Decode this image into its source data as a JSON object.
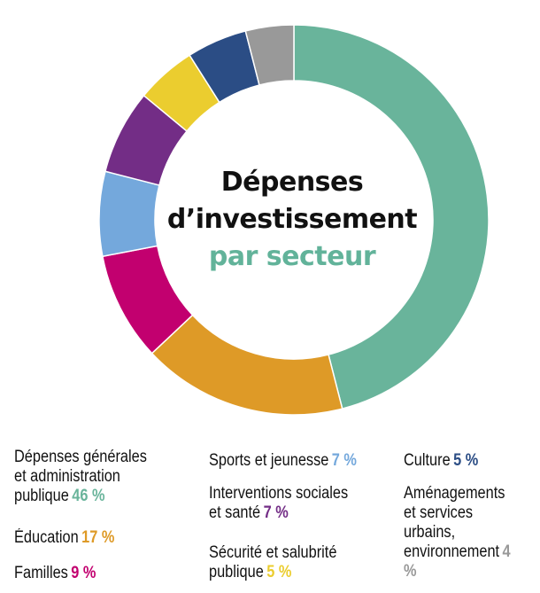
{
  "chart_data": {
    "type": "pie",
    "title_lines": [
      "Dépenses",
      "d’investissement",
      "par secteur"
    ],
    "unit": "%",
    "slices": [
      {
        "label": "Dépenses générales et administration publique",
        "value": 46,
        "pct_text": "46 %",
        "color": "#69b49b"
      },
      {
        "label": "Éducation",
        "value": 17,
        "pct_text": "17 %",
        "color": "#de9a27"
      },
      {
        "label": "Familles",
        "value": 9,
        "pct_text": "9 %",
        "color": "#c2006f"
      },
      {
        "label": "Sports et jeunesse",
        "value": 7,
        "pct_text": "7 %",
        "color": "#74a8dc"
      },
      {
        "label": "Interventions sociales et santé",
        "value": 7,
        "pct_text": "7 %",
        "color": "#732d86"
      },
      {
        "label": "Sécurité et salubrité publique",
        "value": 5,
        "pct_text": "5 %",
        "color": "#ebcd2f"
      },
      {
        "label": "Culture",
        "value": 5,
        "pct_text": "5 %",
        "color": "#2b4d85"
      },
      {
        "label": "Aménagements et services urbains, environnement",
        "value": 4,
        "pct_text": "4 %",
        "color": "#999999"
      }
    ]
  },
  "legend": [
    {
      "lines": [
        "Dépenses générales",
        "et administration",
        "publique"
      ],
      "pct": "46 %",
      "color": "#69b49b"
    },
    {
      "lines": [
        "Éducation"
      ],
      "pct": "17 %",
      "color": "#de9a27"
    },
    {
      "lines": [
        "Familles"
      ],
      "pct": "9 %",
      "color": "#c2006f"
    },
    {
      "lines": [
        "Sports et jeunesse"
      ],
      "pct": "7 %",
      "color": "#74a8dc"
    },
    {
      "lines": [
        "Interventions sociales",
        "et santé"
      ],
      "pct": "7 %",
      "color": "#732d86"
    },
    {
      "lines": [
        "Sécurité et salubrité",
        "publique"
      ],
      "pct": "5 %",
      "color": "#ebcd2f"
    },
    {
      "lines": [
        "Culture"
      ],
      "pct": "5 %",
      "color": "#2b4d85"
    },
    {
      "lines": [
        "Aménagements",
        "et services urbains,",
        "environnement"
      ],
      "pct": "4 %",
      "color": "#999999"
    }
  ]
}
